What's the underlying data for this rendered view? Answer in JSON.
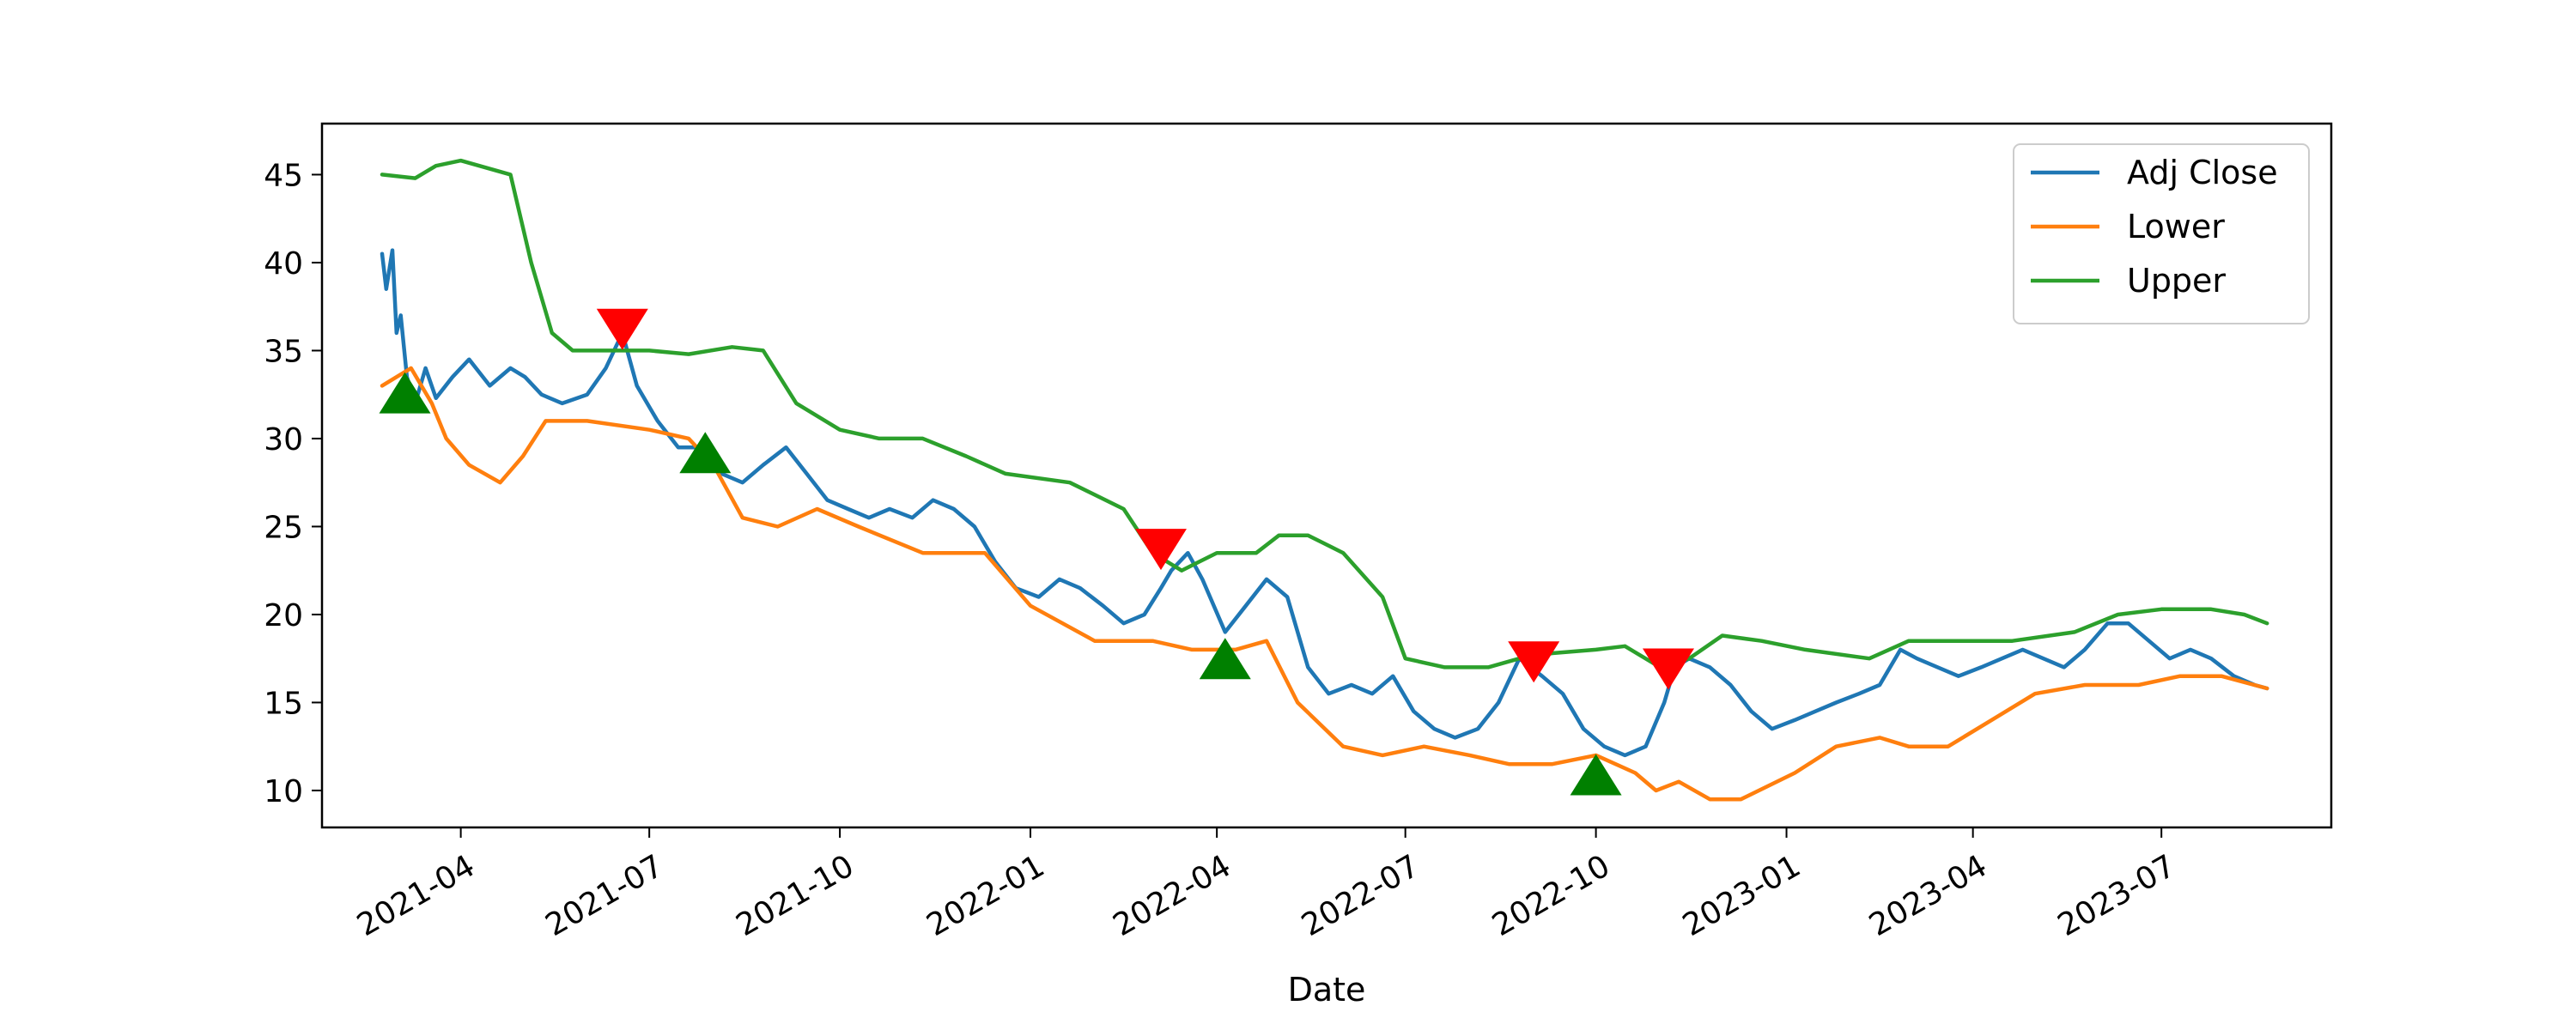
{
  "chart_data": {
    "type": "line",
    "title": "",
    "xlabel": "Date",
    "ylabel": "",
    "x_start": "2021-02-22",
    "x_end": "2023-08-21",
    "xlim": [
      "2021-01-24",
      "2023-09-21"
    ],
    "ylim": [
      7.9,
      47.9
    ],
    "x_ticks": [
      "2021-04",
      "2021-07",
      "2021-10",
      "2022-01",
      "2022-04",
      "2022-07",
      "2022-10",
      "2023-01",
      "2023-04",
      "2023-07"
    ],
    "y_ticks": [
      10,
      15,
      20,
      25,
      30,
      35,
      40,
      45
    ],
    "legend": {
      "position": "top-right",
      "entries": [
        "Adj Close",
        "Lower",
        "Upper"
      ]
    },
    "series": [
      {
        "name": "Adj Close",
        "color": "#1f77b4",
        "points": [
          [
            "2021-02-22",
            40.5
          ],
          [
            "2021-02-24",
            38.5
          ],
          [
            "2021-02-27",
            40.7
          ],
          [
            "2021-03-01",
            36.0
          ],
          [
            "2021-03-03",
            37.0
          ],
          [
            "2021-03-06",
            33.5
          ],
          [
            "2021-03-10",
            32.0
          ],
          [
            "2021-03-15",
            34.0
          ],
          [
            "2021-03-20",
            32.3
          ],
          [
            "2021-03-28",
            33.5
          ],
          [
            "2021-04-05",
            34.5
          ],
          [
            "2021-04-15",
            33.0
          ],
          [
            "2021-04-25",
            34.0
          ],
          [
            "2021-05-02",
            33.5
          ],
          [
            "2021-05-10",
            32.5
          ],
          [
            "2021-05-20",
            32.0
          ],
          [
            "2021-06-01",
            32.5
          ],
          [
            "2021-06-10",
            34.0
          ],
          [
            "2021-06-18",
            36.0
          ],
          [
            "2021-06-25",
            33.0
          ],
          [
            "2021-07-05",
            31.0
          ],
          [
            "2021-07-15",
            29.5
          ],
          [
            "2021-07-25",
            29.5
          ],
          [
            "2021-08-05",
            28.0
          ],
          [
            "2021-08-15",
            27.5
          ],
          [
            "2021-08-25",
            28.5
          ],
          [
            "2021-09-05",
            29.5
          ],
          [
            "2021-09-15",
            28.0
          ],
          [
            "2021-09-25",
            26.5
          ],
          [
            "2021-10-05",
            26.0
          ],
          [
            "2021-10-15",
            25.5
          ],
          [
            "2021-10-25",
            26.0
          ],
          [
            "2021-11-05",
            25.5
          ],
          [
            "2021-11-15",
            26.5
          ],
          [
            "2021-11-25",
            26.0
          ],
          [
            "2021-12-05",
            25.0
          ],
          [
            "2021-12-15",
            23.0
          ],
          [
            "2021-12-25",
            21.5
          ],
          [
            "2022-01-05",
            21.0
          ],
          [
            "2022-01-15",
            22.0
          ],
          [
            "2022-01-25",
            21.5
          ],
          [
            "2022-02-05",
            20.5
          ],
          [
            "2022-02-15",
            19.5
          ],
          [
            "2022-02-25",
            20.0
          ],
          [
            "2022-03-05",
            21.5
          ],
          [
            "2022-03-10",
            22.5
          ],
          [
            "2022-03-18",
            23.5
          ],
          [
            "2022-03-25",
            22.0
          ],
          [
            "2022-04-05",
            19.0
          ],
          [
            "2022-04-15",
            20.5
          ],
          [
            "2022-04-25",
            22.0
          ],
          [
            "2022-05-05",
            21.0
          ],
          [
            "2022-05-15",
            17.0
          ],
          [
            "2022-05-25",
            15.5
          ],
          [
            "2022-06-05",
            16.0
          ],
          [
            "2022-06-15",
            15.5
          ],
          [
            "2022-06-25",
            16.5
          ],
          [
            "2022-07-05",
            14.5
          ],
          [
            "2022-07-15",
            13.5
          ],
          [
            "2022-07-25",
            13.0
          ],
          [
            "2022-08-05",
            13.5
          ],
          [
            "2022-08-15",
            15.0
          ],
          [
            "2022-08-25",
            17.5
          ],
          [
            "2022-09-05",
            16.5
          ],
          [
            "2022-09-15",
            15.5
          ],
          [
            "2022-09-25",
            13.5
          ],
          [
            "2022-10-05",
            12.5
          ],
          [
            "2022-10-15",
            12.0
          ],
          [
            "2022-10-25",
            12.5
          ],
          [
            "2022-11-03",
            15.0
          ],
          [
            "2022-11-08",
            17.0
          ],
          [
            "2022-11-15",
            17.5
          ],
          [
            "2022-11-25",
            17.0
          ],
          [
            "2022-12-05",
            16.0
          ],
          [
            "2022-12-15",
            14.5
          ],
          [
            "2022-12-25",
            13.5
          ],
          [
            "2023-01-05",
            14.0
          ],
          [
            "2023-01-15",
            14.5
          ],
          [
            "2023-01-25",
            15.0
          ],
          [
            "2023-02-05",
            15.5
          ],
          [
            "2023-02-15",
            16.0
          ],
          [
            "2023-02-25",
            18.0
          ],
          [
            "2023-03-05",
            17.5
          ],
          [
            "2023-03-15",
            17.0
          ],
          [
            "2023-03-25",
            16.5
          ],
          [
            "2023-04-05",
            17.0
          ],
          [
            "2023-04-15",
            17.5
          ],
          [
            "2023-04-25",
            18.0
          ],
          [
            "2023-05-05",
            17.5
          ],
          [
            "2023-05-15",
            17.0
          ],
          [
            "2023-05-25",
            18.0
          ],
          [
            "2023-06-05",
            19.5
          ],
          [
            "2023-06-15",
            19.5
          ],
          [
            "2023-06-25",
            18.5
          ],
          [
            "2023-07-05",
            17.5
          ],
          [
            "2023-07-15",
            18.0
          ],
          [
            "2023-07-25",
            17.5
          ],
          [
            "2023-08-05",
            16.5
          ],
          [
            "2023-08-15",
            16.0
          ],
          [
            "2023-08-21",
            15.8
          ]
        ]
      },
      {
        "name": "Lower",
        "color": "#ff7f0e",
        "points": [
          [
            "2021-02-22",
            33.0
          ],
          [
            "2021-03-01",
            33.5
          ],
          [
            "2021-03-08",
            34.0
          ],
          [
            "2021-03-18",
            32.0
          ],
          [
            "2021-03-25",
            30.0
          ],
          [
            "2021-04-05",
            28.5
          ],
          [
            "2021-04-20",
            27.5
          ],
          [
            "2021-05-01",
            29.0
          ],
          [
            "2021-05-12",
            31.0
          ],
          [
            "2021-06-01",
            31.0
          ],
          [
            "2021-07-01",
            30.5
          ],
          [
            "2021-07-20",
            30.0
          ],
          [
            "2021-08-01",
            28.5
          ],
          [
            "2021-08-15",
            25.5
          ],
          [
            "2021-09-01",
            25.0
          ],
          [
            "2021-09-20",
            26.0
          ],
          [
            "2021-10-10",
            25.0
          ],
          [
            "2021-11-10",
            23.5
          ],
          [
            "2021-12-10",
            23.5
          ],
          [
            "2022-01-01",
            20.5
          ],
          [
            "2022-02-01",
            18.5
          ],
          [
            "2022-03-01",
            18.5
          ],
          [
            "2022-03-20",
            18.0
          ],
          [
            "2022-04-10",
            18.0
          ],
          [
            "2022-04-25",
            18.5
          ],
          [
            "2022-05-10",
            15.0
          ],
          [
            "2022-06-01",
            12.5
          ],
          [
            "2022-06-20",
            12.0
          ],
          [
            "2022-07-10",
            12.5
          ],
          [
            "2022-08-01",
            12.0
          ],
          [
            "2022-08-20",
            11.5
          ],
          [
            "2022-09-10",
            11.5
          ],
          [
            "2022-10-01",
            12.0
          ],
          [
            "2022-10-20",
            11.0
          ],
          [
            "2022-10-30",
            10.0
          ],
          [
            "2022-11-10",
            10.5
          ],
          [
            "2022-11-25",
            9.5
          ],
          [
            "2022-12-10",
            9.5
          ],
          [
            "2023-01-05",
            11.0
          ],
          [
            "2023-01-25",
            12.5
          ],
          [
            "2023-02-15",
            13.0
          ],
          [
            "2023-03-01",
            12.5
          ],
          [
            "2023-03-20",
            12.5
          ],
          [
            "2023-04-10",
            14.0
          ],
          [
            "2023-05-01",
            15.5
          ],
          [
            "2023-05-25",
            16.0
          ],
          [
            "2023-06-20",
            16.0
          ],
          [
            "2023-07-10",
            16.5
          ],
          [
            "2023-07-30",
            16.5
          ],
          [
            "2023-08-21",
            15.8
          ]
        ]
      },
      {
        "name": "Upper",
        "color": "#2ca02c",
        "points": [
          [
            "2021-02-22",
            45.0
          ],
          [
            "2021-03-10",
            44.8
          ],
          [
            "2021-03-20",
            45.5
          ],
          [
            "2021-04-01",
            45.8
          ],
          [
            "2021-04-10",
            45.5
          ],
          [
            "2021-04-25",
            45.0
          ],
          [
            "2021-05-05",
            40.0
          ],
          [
            "2021-05-15",
            36.0
          ],
          [
            "2021-05-25",
            35.0
          ],
          [
            "2021-06-10",
            35.0
          ],
          [
            "2021-07-01",
            35.0
          ],
          [
            "2021-07-20",
            34.8
          ],
          [
            "2021-08-10",
            35.2
          ],
          [
            "2021-08-25",
            35.0
          ],
          [
            "2021-09-10",
            32.0
          ],
          [
            "2021-10-01",
            30.5
          ],
          [
            "2021-10-20",
            30.0
          ],
          [
            "2021-11-10",
            30.0
          ],
          [
            "2021-12-01",
            29.0
          ],
          [
            "2021-12-20",
            28.0
          ],
          [
            "2022-01-20",
            27.5
          ],
          [
            "2022-02-15",
            26.0
          ],
          [
            "2022-03-01",
            23.5
          ],
          [
            "2022-03-15",
            22.5
          ],
          [
            "2022-04-01",
            23.5
          ],
          [
            "2022-04-20",
            23.5
          ],
          [
            "2022-05-01",
            24.5
          ],
          [
            "2022-05-15",
            24.5
          ],
          [
            "2022-06-01",
            23.5
          ],
          [
            "2022-06-20",
            21.0
          ],
          [
            "2022-07-01",
            17.5
          ],
          [
            "2022-07-20",
            17.0
          ],
          [
            "2022-08-10",
            17.0
          ],
          [
            "2022-08-25",
            17.5
          ],
          [
            "2022-09-10",
            17.8
          ],
          [
            "2022-10-01",
            18.0
          ],
          [
            "2022-10-15",
            18.2
          ],
          [
            "2022-11-01",
            17.0
          ],
          [
            "2022-11-15",
            17.5
          ],
          [
            "2022-12-01",
            18.8
          ],
          [
            "2022-12-20",
            18.5
          ],
          [
            "2023-01-10",
            18.0
          ],
          [
            "2023-02-10",
            17.5
          ],
          [
            "2023-03-01",
            18.5
          ],
          [
            "2023-03-20",
            18.5
          ],
          [
            "2023-04-20",
            18.5
          ],
          [
            "2023-05-20",
            19.0
          ],
          [
            "2023-06-10",
            20.0
          ],
          [
            "2023-07-01",
            20.3
          ],
          [
            "2023-07-25",
            20.3
          ],
          [
            "2023-08-10",
            20.0
          ],
          [
            "2023-08-21",
            19.5
          ]
        ]
      }
    ],
    "markers": [
      {
        "type": "sell",
        "shape": "triangle-down",
        "color": "#ff0000",
        "x": "2021-06-18",
        "y": 36.2
      },
      {
        "type": "sell",
        "shape": "triangle-down",
        "color": "#ff0000",
        "x": "2022-03-05",
        "y": 23.7
      },
      {
        "type": "sell",
        "shape": "triangle-down",
        "color": "#ff0000",
        "x": "2022-09-01",
        "y": 17.3
      },
      {
        "type": "sell",
        "shape": "triangle-down",
        "color": "#ff0000",
        "x": "2022-11-05",
        "y": 16.9
      },
      {
        "type": "buy",
        "shape": "triangle-up",
        "color": "#008000",
        "x": "2021-03-05",
        "y": 32.6
      },
      {
        "type": "buy",
        "shape": "triangle-up",
        "color": "#008000",
        "x": "2021-07-28",
        "y": 29.2
      },
      {
        "type": "buy",
        "shape": "triangle-up",
        "color": "#008000",
        "x": "2022-04-05",
        "y": 17.5
      },
      {
        "type": "buy",
        "shape": "triangle-up",
        "color": "#008000",
        "x": "2022-10-01",
        "y": 10.9
      }
    ]
  }
}
